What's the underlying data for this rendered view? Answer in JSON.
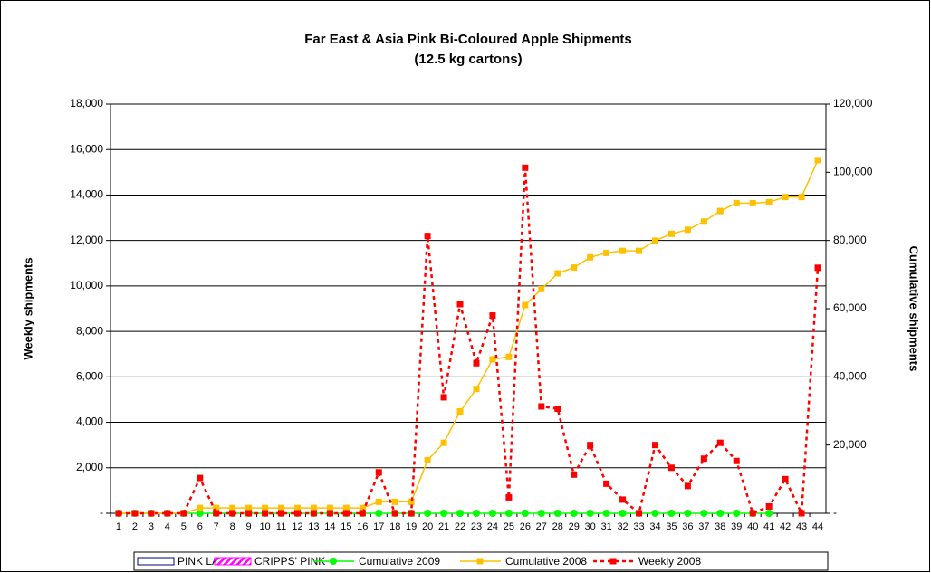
{
  "chart_data": {
    "type": "combo",
    "title": "Far East & Asia Pink Bi-Coloured Apple Shipments",
    "subtitle": "(12.5 kg cartons)",
    "y_label": "Weekly shipments",
    "y2_label": "Cumulative shipments",
    "categories": [
      "1",
      "2",
      "3",
      "4",
      "5",
      "6",
      "7",
      "8",
      "9",
      "10",
      "11",
      "12",
      "13",
      "14",
      "15",
      "16",
      "17",
      "18",
      "19",
      "20",
      "21",
      "22",
      "23",
      "24",
      "25",
      "26",
      "27",
      "28",
      "29",
      "30",
      "31",
      "32",
      "33",
      "34",
      "35",
      "36",
      "37",
      "38",
      "39",
      "40",
      "41",
      "42",
      "43",
      "44"
    ],
    "ylim": [
      0,
      18000
    ],
    "yticks": [
      {
        "value": 0,
        "label": "-"
      },
      {
        "value": 2000,
        "label": "2,000"
      },
      {
        "value": 4000,
        "label": "4,000"
      },
      {
        "value": 6000,
        "label": "6,000"
      },
      {
        "value": 8000,
        "label": "8,000"
      },
      {
        "value": 10000,
        "label": "10,000"
      },
      {
        "value": 12000,
        "label": "12,000"
      },
      {
        "value": 14000,
        "label": "14,000"
      },
      {
        "value": 16000,
        "label": "16,000"
      },
      {
        "value": 18000,
        "label": "18,000"
      }
    ],
    "y2lim": [
      0,
      120000
    ],
    "y2ticks": [
      {
        "value": 0,
        "label": "-"
      },
      {
        "value": 20000,
        "label": "20,000"
      },
      {
        "value": 40000,
        "label": "40,000"
      },
      {
        "value": 60000,
        "label": "60,000"
      },
      {
        "value": 80000,
        "label": "80,000"
      },
      {
        "value": 100000,
        "label": "100,000"
      },
      {
        "value": 120000,
        "label": "120,000"
      }
    ],
    "grid": true,
    "legend": "bottom",
    "series": [
      {
        "name": "PINK LADY",
        "type": "bar",
        "color": "#000080",
        "values": [
          0,
          0,
          0,
          0,
          0,
          0,
          0,
          0,
          0,
          0,
          0,
          0,
          0,
          0,
          0,
          0,
          0,
          0,
          0,
          0,
          0,
          0,
          0,
          0,
          0,
          0,
          0,
          0,
          0,
          0,
          0,
          0,
          0,
          0,
          0,
          0,
          0,
          0,
          0,
          0,
          0,
          0,
          0,
          0
        ]
      },
      {
        "name": "CRIPPS' PINK",
        "type": "bar",
        "color": "#ff00ff",
        "values": [
          0,
          0,
          0,
          0,
          0,
          0,
          0,
          0,
          0,
          0,
          0,
          0,
          0,
          0,
          0,
          0,
          0,
          0,
          0,
          0,
          0,
          0,
          0,
          0,
          0,
          0,
          0,
          0,
          0,
          0,
          0,
          0,
          0,
          0,
          0,
          0,
          0,
          0,
          0,
          0,
          0,
          0,
          0,
          0
        ]
      },
      {
        "name": "Cumulative 2009",
        "type": "line",
        "marker": "circle",
        "color": "#00ff00",
        "axis": "y2",
        "values": [
          0,
          0,
          0,
          0,
          0,
          0,
          0,
          0,
          0,
          0,
          0,
          0,
          0,
          0,
          0,
          0,
          0,
          0,
          0,
          0,
          0,
          0,
          0,
          0,
          0,
          0,
          0,
          0,
          0,
          0,
          0,
          0,
          0,
          0,
          0,
          0,
          0,
          0,
          0,
          0,
          0,
          null,
          null,
          null
        ]
      },
      {
        "name": "Cumulative 2008",
        "type": "line",
        "marker": "square",
        "color": "#ffc000",
        "axis": "y2",
        "values": [
          0,
          0,
          0,
          0,
          0,
          1550,
          1550,
          1550,
          1550,
          1550,
          1550,
          1550,
          1550,
          1550,
          1550,
          1550,
          3350,
          3350,
          3350,
          15550,
          20650,
          29850,
          36450,
          45150,
          45850,
          61050,
          65750,
          70350,
          72050,
          75050,
          76350,
          76950,
          76950,
          79950,
          81950,
          83150,
          85550,
          88650,
          90950,
          90950,
          91250,
          92750,
          92750,
          103550
        ]
      },
      {
        "name": "Weekly 2008",
        "type": "line",
        "marker": "square",
        "dashed": true,
        "color": "#ff0000",
        "values": [
          0,
          0,
          0,
          0,
          0,
          1550,
          0,
          0,
          0,
          0,
          0,
          0,
          0,
          0,
          0,
          0,
          1800,
          0,
          0,
          12200,
          5100,
          9200,
          6600,
          8700,
          700,
          15200,
          4700,
          4600,
          1700,
          3000,
          1300,
          600,
          0,
          3000,
          2000,
          1200,
          2400,
          3100,
          2300,
          0,
          300,
          1500,
          0,
          10800
        ]
      }
    ]
  }
}
